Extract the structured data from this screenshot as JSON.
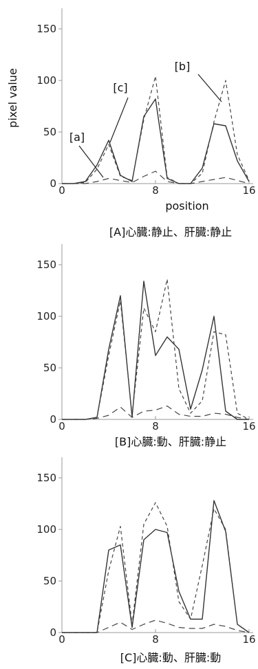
{
  "chart_data": [
    {
      "type": "line",
      "caption": "[A]心臓:静止、肝臓:静止",
      "xlabel": "position",
      "ylabel": "pixel value",
      "xlim": [
        0,
        16
      ],
      "ylim": [
        0,
        150
      ],
      "x_ticks": [
        "0",
        "8",
        "16"
      ],
      "y_ticks": [
        "0",
        "50",
        "100",
        "150"
      ],
      "x": [
        0,
        1,
        2,
        3,
        4,
        5,
        6,
        7,
        8,
        9,
        10,
        11,
        12,
        13,
        14,
        15,
        16
      ],
      "series": [
        {
          "style": "solid",
          "values": [
            0,
            0,
            2,
            18,
            42,
            8,
            2,
            65,
            82,
            5,
            0,
            0,
            15,
            58,
            56,
            22,
            2
          ]
        },
        {
          "style": "dashed",
          "values": [
            0,
            0,
            1,
            14,
            38,
            7,
            3,
            62,
            104,
            6,
            0,
            0,
            10,
            60,
            100,
            28,
            3
          ]
        },
        {
          "style": "dashed",
          "values": [
            0,
            0,
            0,
            2,
            5,
            3,
            1,
            7,
            12,
            2,
            0,
            0,
            2,
            4,
            6,
            3,
            0
          ]
        }
      ],
      "annotations": [
        "[a]",
        "[b]",
        "[c]"
      ]
    },
    {
      "type": "line",
      "caption": "[B]心臓:動、肝臓:静止",
      "xlim": [
        0,
        16
      ],
      "ylim": [
        0,
        150
      ],
      "x_ticks": [
        "0",
        "8",
        "16"
      ],
      "y_ticks": [
        "0",
        "50",
        "100",
        "150"
      ],
      "x": [
        0,
        1,
        2,
        3,
        4,
        5,
        6,
        7,
        8,
        9,
        10,
        11,
        12,
        13,
        14,
        15,
        16
      ],
      "series": [
        {
          "style": "solid",
          "values": [
            0,
            0,
            0,
            2,
            68,
            120,
            2,
            134,
            62,
            80,
            68,
            10,
            48,
            100,
            8,
            0,
            0
          ]
        },
        {
          "style": "dashed",
          "values": [
            0,
            0,
            0,
            2,
            62,
            115,
            4,
            108,
            85,
            136,
            30,
            6,
            18,
            85,
            82,
            6,
            0
          ]
        },
        {
          "style": "dashed",
          "values": [
            0,
            0,
            0,
            1,
            4,
            12,
            2,
            8,
            9,
            13,
            5,
            3,
            3,
            6,
            5,
            2,
            0
          ]
        }
      ]
    },
    {
      "type": "line",
      "caption": "[C]心臓:動、肝臓:動",
      "xlim": [
        0,
        16
      ],
      "ylim": [
        0,
        150
      ],
      "x_ticks": [
        "0",
        "8",
        "16"
      ],
      "y_ticks": [
        "0",
        "50",
        "100",
        "150"
      ],
      "x": [
        0,
        1,
        2,
        3,
        4,
        5,
        6,
        7,
        8,
        9,
        10,
        11,
        12,
        13,
        14,
        15,
        16
      ],
      "series": [
        {
          "style": "solid",
          "values": [
            0,
            0,
            0,
            0,
            80,
            85,
            5,
            90,
            100,
            97,
            40,
            13,
            13,
            128,
            98,
            8,
            0
          ]
        },
        {
          "style": "dashed",
          "values": [
            0,
            0,
            0,
            0,
            60,
            103,
            8,
            105,
            126,
            103,
            30,
            13,
            65,
            120,
            100,
            8,
            0
          ]
        },
        {
          "style": "dashed",
          "values": [
            0,
            0,
            0,
            0,
            5,
            10,
            3,
            8,
            12,
            9,
            5,
            4,
            4,
            8,
            6,
            2,
            0
          ]
        }
      ]
    }
  ]
}
